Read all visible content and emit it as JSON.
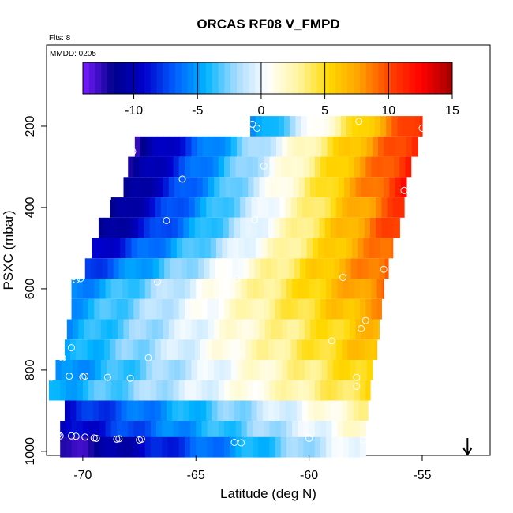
{
  "chart_data": {
    "type": "heatmap",
    "title": "ORCAS RF08 V_FMPD",
    "flights_note": "Flts: 8",
    "date_note": "MMDD: 0205",
    "xlabel": "Latitude (deg N)",
    "ylabel": "PSXC (mbar)",
    "xlim": [
      -71.6,
      -52.0
    ],
    "ylim": [
      1010,
      0
    ],
    "x_ticks": [
      -70,
      -65,
      -60,
      -55
    ],
    "y_ticks": [
      200,
      400,
      600,
      800,
      1000
    ],
    "colorbar": {
      "range": [
        -14,
        15
      ],
      "ticks": [
        -10,
        -5,
        0,
        5,
        10,
        15
      ],
      "colors": [
        "#7a1cff",
        "#00008b",
        "#0000cd",
        "#0060ff",
        "#00b4ff",
        "#a8dcff",
        "#ffffff",
        "#fff5a0",
        "#ffd800",
        "#ffa000",
        "#ff4000",
        "#ff0000",
        "#a00000"
      ]
    },
    "layers": [
      {
        "p": 200,
        "lat_min": -62.6,
        "lat_max": -55.0,
        "v_south": -6,
        "v_north": 12
      },
      {
        "p": 250,
        "lat_min": -67.7,
        "lat_max": -55.2,
        "v_south": -12,
        "v_north": 12
      },
      {
        "p": 300,
        "lat_min": -68.0,
        "lat_max": -55.5,
        "v_south": -12,
        "v_north": 12
      },
      {
        "p": 350,
        "lat_min": -68.2,
        "lat_max": -55.7,
        "v_south": -12,
        "v_north": 12
      },
      {
        "p": 400,
        "lat_min": -68.8,
        "lat_max": -55.8,
        "v_south": -12,
        "v_north": 11
      },
      {
        "p": 450,
        "lat_min": -69.3,
        "lat_max": -56.0,
        "v_south": -12,
        "v_north": 11
      },
      {
        "p": 500,
        "lat_min": -69.6,
        "lat_max": -56.3,
        "v_south": -10,
        "v_north": 10
      },
      {
        "p": 550,
        "lat_min": -69.9,
        "lat_max": -56.5,
        "v_south": -8,
        "v_north": 10
      },
      {
        "p": 600,
        "lat_min": -70.5,
        "lat_max": -56.7,
        "v_south": -6,
        "v_north": 9
      },
      {
        "p": 650,
        "lat_min": -70.5,
        "lat_max": -56.8,
        "v_south": -5,
        "v_north": 8
      },
      {
        "p": 700,
        "lat_min": -70.7,
        "lat_max": -56.9,
        "v_south": -5,
        "v_north": 7
      },
      {
        "p": 750,
        "lat_min": -70.8,
        "lat_max": -57.0,
        "v_south": -5,
        "v_north": 7
      },
      {
        "p": 800,
        "lat_min": -71.2,
        "lat_max": -57.2,
        "v_south": -6,
        "v_north": 6
      },
      {
        "p": 850,
        "lat_min": -71.5,
        "lat_max": -57.3,
        "v_south": -5,
        "v_north": 5
      },
      {
        "p": 900,
        "lat_min": -70.8,
        "lat_max": -57.4,
        "v_south": -9,
        "v_north": 3
      },
      {
        "p": 950,
        "lat_min": -71.0,
        "lat_max": -57.5,
        "v_south": -10,
        "v_north": 2
      },
      {
        "p": 990,
        "lat_min": -71.0,
        "lat_max": -57.5,
        "v_south": -13,
        "v_north": 1
      }
    ],
    "observations": [
      {
        "lat": -62.5,
        "p": 195
      },
      {
        "lat": -62.3,
        "p": 205
      },
      {
        "lat": -57.8,
        "p": 188
      },
      {
        "lat": -55.0,
        "p": 205
      },
      {
        "lat": -67.6,
        "p": 215
      },
      {
        "lat": -67.8,
        "p": 262
      },
      {
        "lat": -68.2,
        "p": 300
      },
      {
        "lat": -65.6,
        "p": 330
      },
      {
        "lat": -62.0,
        "p": 298
      },
      {
        "lat": -61.7,
        "p": 330
      },
      {
        "lat": -55.8,
        "p": 358
      },
      {
        "lat": -68.9,
        "p": 378
      },
      {
        "lat": -66.3,
        "p": 432
      },
      {
        "lat": -62.4,
        "p": 430
      },
      {
        "lat": -56.7,
        "p": 552
      },
      {
        "lat": -70.4,
        "p": 570
      },
      {
        "lat": -70.3,
        "p": 578
      },
      {
        "lat": -70.1,
        "p": 575
      },
      {
        "lat": -66.7,
        "p": 583
      },
      {
        "lat": -63.2,
        "p": 575
      },
      {
        "lat": -58.5,
        "p": 572
      },
      {
        "lat": -57.5,
        "p": 678
      },
      {
        "lat": -57.7,
        "p": 698
      },
      {
        "lat": -59.0,
        "p": 728
      },
      {
        "lat": -70.5,
        "p": 745
      },
      {
        "lat": -70.9,
        "p": 770
      },
      {
        "lat": -67.1,
        "p": 770
      },
      {
        "lat": -63.1,
        "p": 760
      },
      {
        "lat": -71.4,
        "p": 818
      },
      {
        "lat": -70.6,
        "p": 815
      },
      {
        "lat": -70.0,
        "p": 817
      },
      {
        "lat": -69.9,
        "p": 815
      },
      {
        "lat": -68.9,
        "p": 818
      },
      {
        "lat": -67.9,
        "p": 820
      },
      {
        "lat": -57.9,
        "p": 818
      },
      {
        "lat": -57.9,
        "p": 840
      },
      {
        "lat": -71.1,
        "p": 960
      },
      {
        "lat": -71.0,
        "p": 962
      },
      {
        "lat": -70.5,
        "p": 962
      },
      {
        "lat": -70.3,
        "p": 963
      },
      {
        "lat": -69.9,
        "p": 965
      },
      {
        "lat": -69.5,
        "p": 967
      },
      {
        "lat": -69.4,
        "p": 968
      },
      {
        "lat": -68.5,
        "p": 970
      },
      {
        "lat": -68.4,
        "p": 969
      },
      {
        "lat": -67.5,
        "p": 972
      },
      {
        "lat": -67.4,
        "p": 970
      },
      {
        "lat": -63.3,
        "p": 978
      },
      {
        "lat": -63.0,
        "p": 979
      },
      {
        "lat": -60.0,
        "p": 968
      },
      {
        "lat": -57.6,
        "p": 972
      }
    ],
    "marker": {
      "type": "arrow-down",
      "lat": -53.0,
      "label": ""
    }
  }
}
